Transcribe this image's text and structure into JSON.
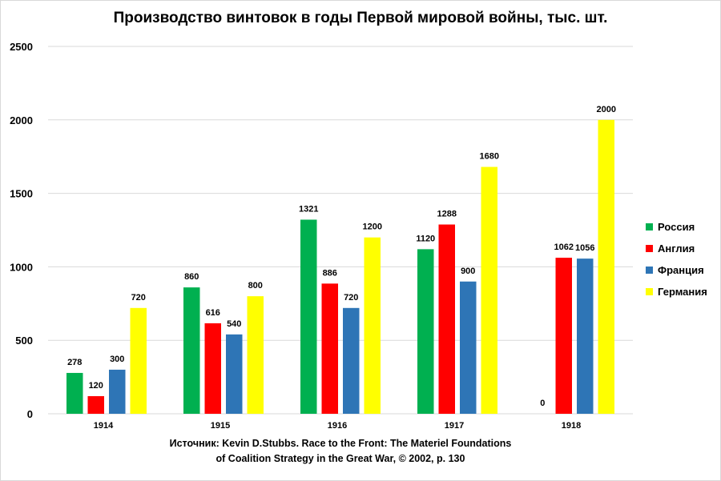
{
  "chart_data": {
    "type": "bar",
    "title": "Производство винтовок в годы Первой мировой войны, тыс. шт.",
    "xlabel": "",
    "ylabel": "",
    "ylim": [
      0,
      2500
    ],
    "yticks": [
      0,
      500,
      1000,
      1500,
      2000,
      2500
    ],
    "ytick_labels": [
      "0",
      "500",
      "1000",
      "1500",
      "2000",
      "2500"
    ],
    "grid": true,
    "legend_position": "right",
    "categories": [
      "1914",
      "1915",
      "1916",
      "1917",
      "1918"
    ],
    "series": [
      {
        "name": "Россия",
        "color": "#00b050",
        "values": [
          278,
          860,
          1321,
          1120,
          0
        ]
      },
      {
        "name": "Англия",
        "color": "#ff0000",
        "values": [
          120,
          616,
          886,
          1288,
          1062
        ]
      },
      {
        "name": "Франция",
        "color": "#2e75b6",
        "values": [
          300,
          540,
          720,
          900,
          1056
        ]
      },
      {
        "name": "Германия",
        "color": "#ffff00",
        "values": [
          720,
          800,
          1200,
          1680,
          2000
        ]
      }
    ],
    "source_note": [
      "Источник: Kevin D.Stubbs. Race to the Front: The Materiel Foundations",
      "of Coalition Strategy in the Great War, © 2002, p. 130"
    ]
  }
}
